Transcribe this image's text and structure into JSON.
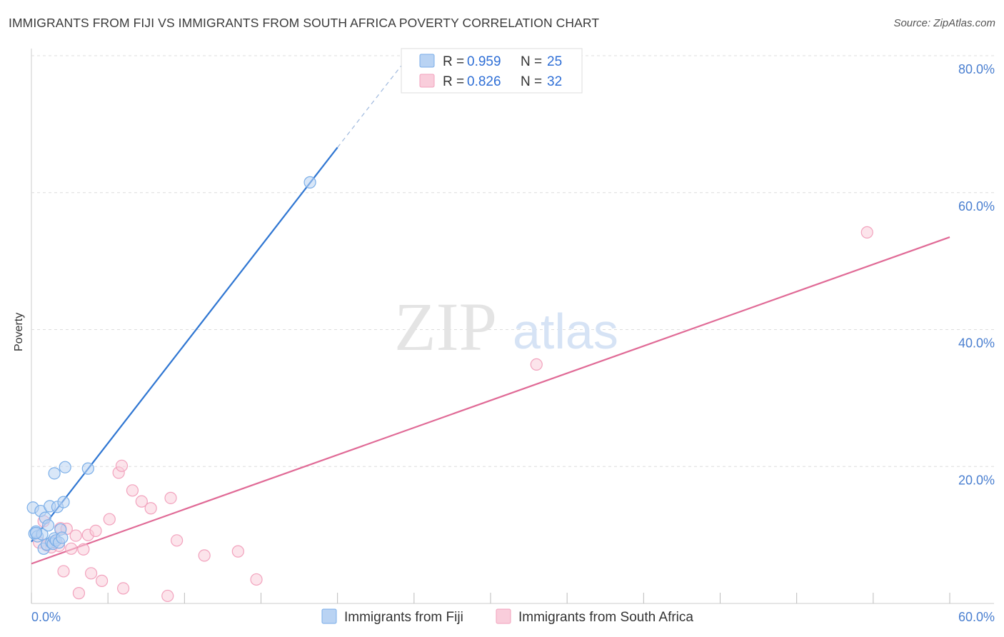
{
  "header": {
    "title": "IMMIGRANTS FROM FIJI VS IMMIGRANTS FROM SOUTH AFRICA POVERTY CORRELATION CHART",
    "source": "Source: ZipAtlas.com"
  },
  "watermark": {
    "zip": "ZIP",
    "atlas": "atlas"
  },
  "chart_data": {
    "type": "scatter",
    "title": "IMMIGRANTS FROM FIJI VS IMMIGRANTS FROM SOUTH AFRICA POVERTY CORRELATION CHART",
    "xlabel": "",
    "ylabel": "Poverty",
    "xlim": [
      0,
      60
    ],
    "ylim": [
      0,
      80
    ],
    "x_tick_labels": [
      "0.0%",
      "60.0%"
    ],
    "y_ticks": [
      20,
      40,
      60,
      80
    ],
    "y_tick_labels": [
      "20.0%",
      "40.0%",
      "60.0%",
      "80.0%"
    ],
    "grid": true,
    "legend_position": "top-center",
    "series": [
      {
        "name": "Immigrants from Fiji",
        "color": "#7aaee8",
        "fill": "#b9d3f3",
        "line_color": "#2f76d2",
        "r_label": "R = ",
        "r_value": "0.959",
        "n_label": "N = ",
        "n_value": "25",
        "trend": {
          "x0": 0,
          "y0": 9.0,
          "x1": 20.0,
          "y1": 66.6,
          "dash_to_x": 24.5,
          "dash_to_y": 79.5
        },
        "points": [
          [
            0.1,
            14.0
          ],
          [
            0.2,
            10.2
          ],
          [
            0.3,
            10.5
          ],
          [
            0.4,
            9.8
          ],
          [
            0.6,
            13.5
          ],
          [
            0.7,
            10.1
          ],
          [
            0.8,
            8.0
          ],
          [
            0.9,
            12.5
          ],
          [
            1.0,
            8.6
          ],
          [
            1.1,
            11.4
          ],
          [
            1.2,
            14.2
          ],
          [
            1.3,
            8.9
          ],
          [
            1.4,
            8.7
          ],
          [
            1.5,
            9.5
          ],
          [
            1.5,
            19.0
          ],
          [
            1.6,
            9.2
          ],
          [
            1.7,
            14.1
          ],
          [
            1.8,
            8.9
          ],
          [
            1.9,
            10.8
          ],
          [
            2.0,
            9.6
          ],
          [
            2.1,
            14.8
          ],
          [
            2.2,
            19.9
          ],
          [
            3.7,
            19.7
          ],
          [
            18.2,
            61.5
          ],
          [
            0.3,
            10.3
          ]
        ]
      },
      {
        "name": "Immigrants from South Africa",
        "color": "#f2a2bd",
        "fill": "#f9cddb",
        "line_color": "#e06a96",
        "r_label": "R = ",
        "r_value": "0.826",
        "n_label": "N = ",
        "n_value": "32",
        "trend": {
          "x0": 0,
          "y0": 5.8,
          "x1": 60.0,
          "y1": 53.5
        },
        "points": [
          [
            0.5,
            8.9
          ],
          [
            0.8,
            12.0
          ],
          [
            1.0,
            8.5
          ],
          [
            1.3,
            8.2
          ],
          [
            1.5,
            9.0
          ],
          [
            1.8,
            8.4
          ],
          [
            1.9,
            11.0
          ],
          [
            2.1,
            4.7
          ],
          [
            2.3,
            10.9
          ],
          [
            2.6,
            8.0
          ],
          [
            2.9,
            9.9
          ],
          [
            3.1,
            1.5
          ],
          [
            3.4,
            7.9
          ],
          [
            3.7,
            10.0
          ],
          [
            3.9,
            4.4
          ],
          [
            4.2,
            10.6
          ],
          [
            4.6,
            3.3
          ],
          [
            5.1,
            12.3
          ],
          [
            5.7,
            19.1
          ],
          [
            5.9,
            20.1
          ],
          [
            6.0,
            2.2
          ],
          [
            6.6,
            16.5
          ],
          [
            7.2,
            14.9
          ],
          [
            7.8,
            13.9
          ],
          [
            8.9,
            1.1
          ],
          [
            9.1,
            15.4
          ],
          [
            9.5,
            9.2
          ],
          [
            11.3,
            7.0
          ],
          [
            13.5,
            7.6
          ],
          [
            14.7,
            3.5
          ],
          [
            33.0,
            34.9
          ],
          [
            54.6,
            54.2
          ]
        ]
      }
    ]
  }
}
